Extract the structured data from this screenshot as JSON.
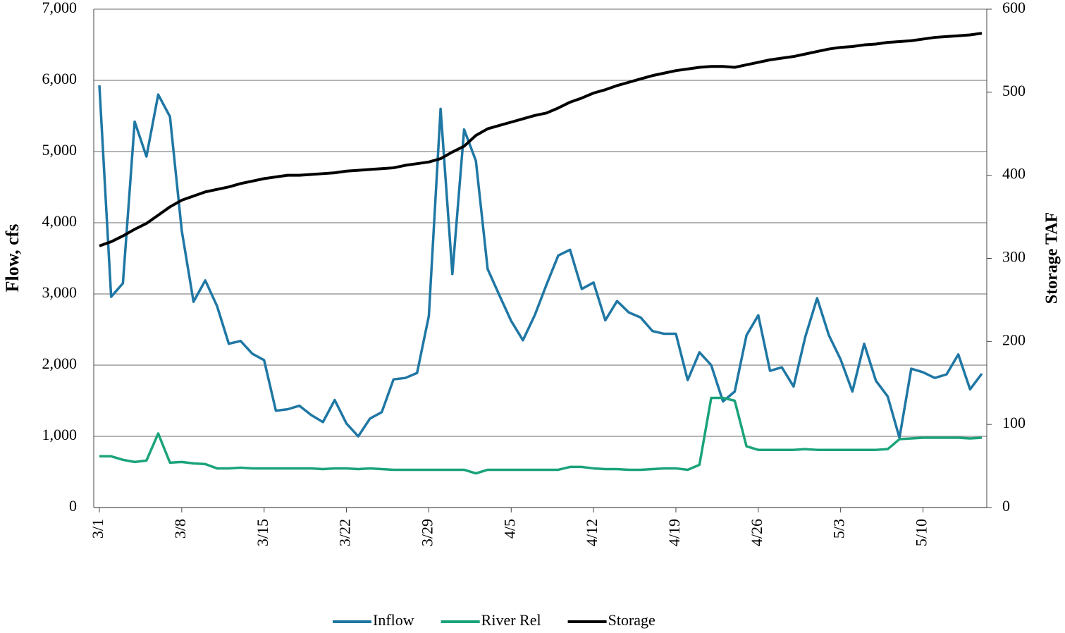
{
  "chart_data": {
    "type": "line",
    "y_label": "Flow, cfs",
    "y2_label": "Storage TAF",
    "categories": [
      "3/1",
      null,
      null,
      null,
      null,
      null,
      null,
      "3/8",
      null,
      null,
      null,
      null,
      null,
      null,
      "3/15",
      null,
      null,
      null,
      null,
      null,
      null,
      "3/22",
      null,
      null,
      null,
      null,
      null,
      null,
      "3/29",
      null,
      null,
      null,
      null,
      null,
      null,
      "4/5",
      null,
      null,
      null,
      null,
      null,
      null,
      "4/12",
      null,
      null,
      null,
      null,
      null,
      null,
      "4/19",
      null,
      null,
      null,
      null,
      null,
      null,
      "4/26",
      null,
      null,
      null,
      null,
      null,
      null,
      "5/3",
      null,
      null,
      null,
      null,
      null,
      null,
      "5/10",
      null,
      null,
      null,
      null,
      null
    ],
    "series": [
      {
        "name": "Inflow",
        "color": "#1f77a4",
        "values": [
          5930,
          2960,
          3150,
          5420,
          4930,
          5800,
          5490,
          3890,
          2890,
          3190,
          2830,
          2300,
          2340,
          2160,
          2070,
          1360,
          1380,
          1430,
          1300,
          1200,
          1510,
          1180,
          1000,
          1250,
          1340,
          1800,
          1820,
          1890,
          2690,
          5600,
          3280,
          5310,
          4870,
          3350,
          2980,
          2620,
          2350,
          2700,
          3130,
          3540,
          3620,
          3070,
          3160,
          2630,
          2900,
          2740,
          2670,
          2480,
          2440,
          2440,
          1790,
          2180,
          2000,
          1490,
          1630,
          2420,
          2700,
          1920,
          1970,
          1700,
          2400,
          2940,
          2420,
          2080,
          1630,
          2300,
          1780,
          1560,
          980,
          1950,
          1900,
          1820,
          1870,
          2150,
          1660,
          1880
        ]
      },
      {
        "name": "River Rel",
        "color": "#1aa37a",
        "values": [
          720,
          720,
          670,
          640,
          660,
          1040,
          630,
          640,
          620,
          610,
          550,
          550,
          560,
          550,
          550,
          550,
          550,
          550,
          550,
          540,
          550,
          550,
          540,
          550,
          540,
          530,
          530,
          530,
          530,
          530,
          530,
          530,
          480,
          530,
          530,
          530,
          530,
          530,
          530,
          530,
          570,
          570,
          550,
          540,
          540,
          530,
          530,
          540,
          550,
          550,
          530,
          600,
          1540,
          1540,
          1500,
          860,
          810,
          810,
          810,
          810,
          820,
          810,
          810,
          810,
          810,
          810,
          810,
          820,
          960,
          970,
          980,
          980,
          980,
          980,
          970,
          980
        ]
      },
      {
        "name": "Storage",
        "color": "#000000",
        "axis": "y2",
        "values": [
          315,
          320,
          327,
          335,
          342,
          352,
          362,
          370,
          375,
          380,
          383,
          386,
          390,
          393,
          396,
          398,
          400,
          400,
          401,
          402,
          403,
          405,
          406,
          407,
          408,
          409,
          412,
          414,
          416,
          420,
          428,
          435,
          448,
          456,
          460,
          464,
          468,
          472,
          475,
          481,
          488,
          493,
          499,
          503,
          508,
          512,
          516,
          520,
          523,
          526,
          528,
          530,
          531,
          531,
          530,
          533,
          536,
          539,
          541,
          543,
          546,
          549,
          552,
          554,
          555,
          557,
          558,
          560,
          561,
          562,
          564,
          566,
          567,
          568,
          569,
          571
        ]
      }
    ],
    "ylim": [
      0,
      7000
    ],
    "yticks": [
      0,
      {
        "value": 1000,
        "label": "1,000"
      },
      {
        "value": 2000,
        "label": "2,000"
      },
      {
        "value": 3000,
        "label": "3,000"
      },
      {
        "value": 4000,
        "label": "4,000"
      },
      {
        "value": 5000,
        "label": "5,000"
      },
      {
        "value": 6000,
        "label": "6,000"
      },
      {
        "value": 7000,
        "label": "7,000"
      }
    ],
    "y2lim": [
      0,
      600
    ],
    "y2ticks": [
      0,
      100,
      200,
      300,
      400,
      500,
      600
    ],
    "grid": true,
    "legend": "bottom"
  }
}
